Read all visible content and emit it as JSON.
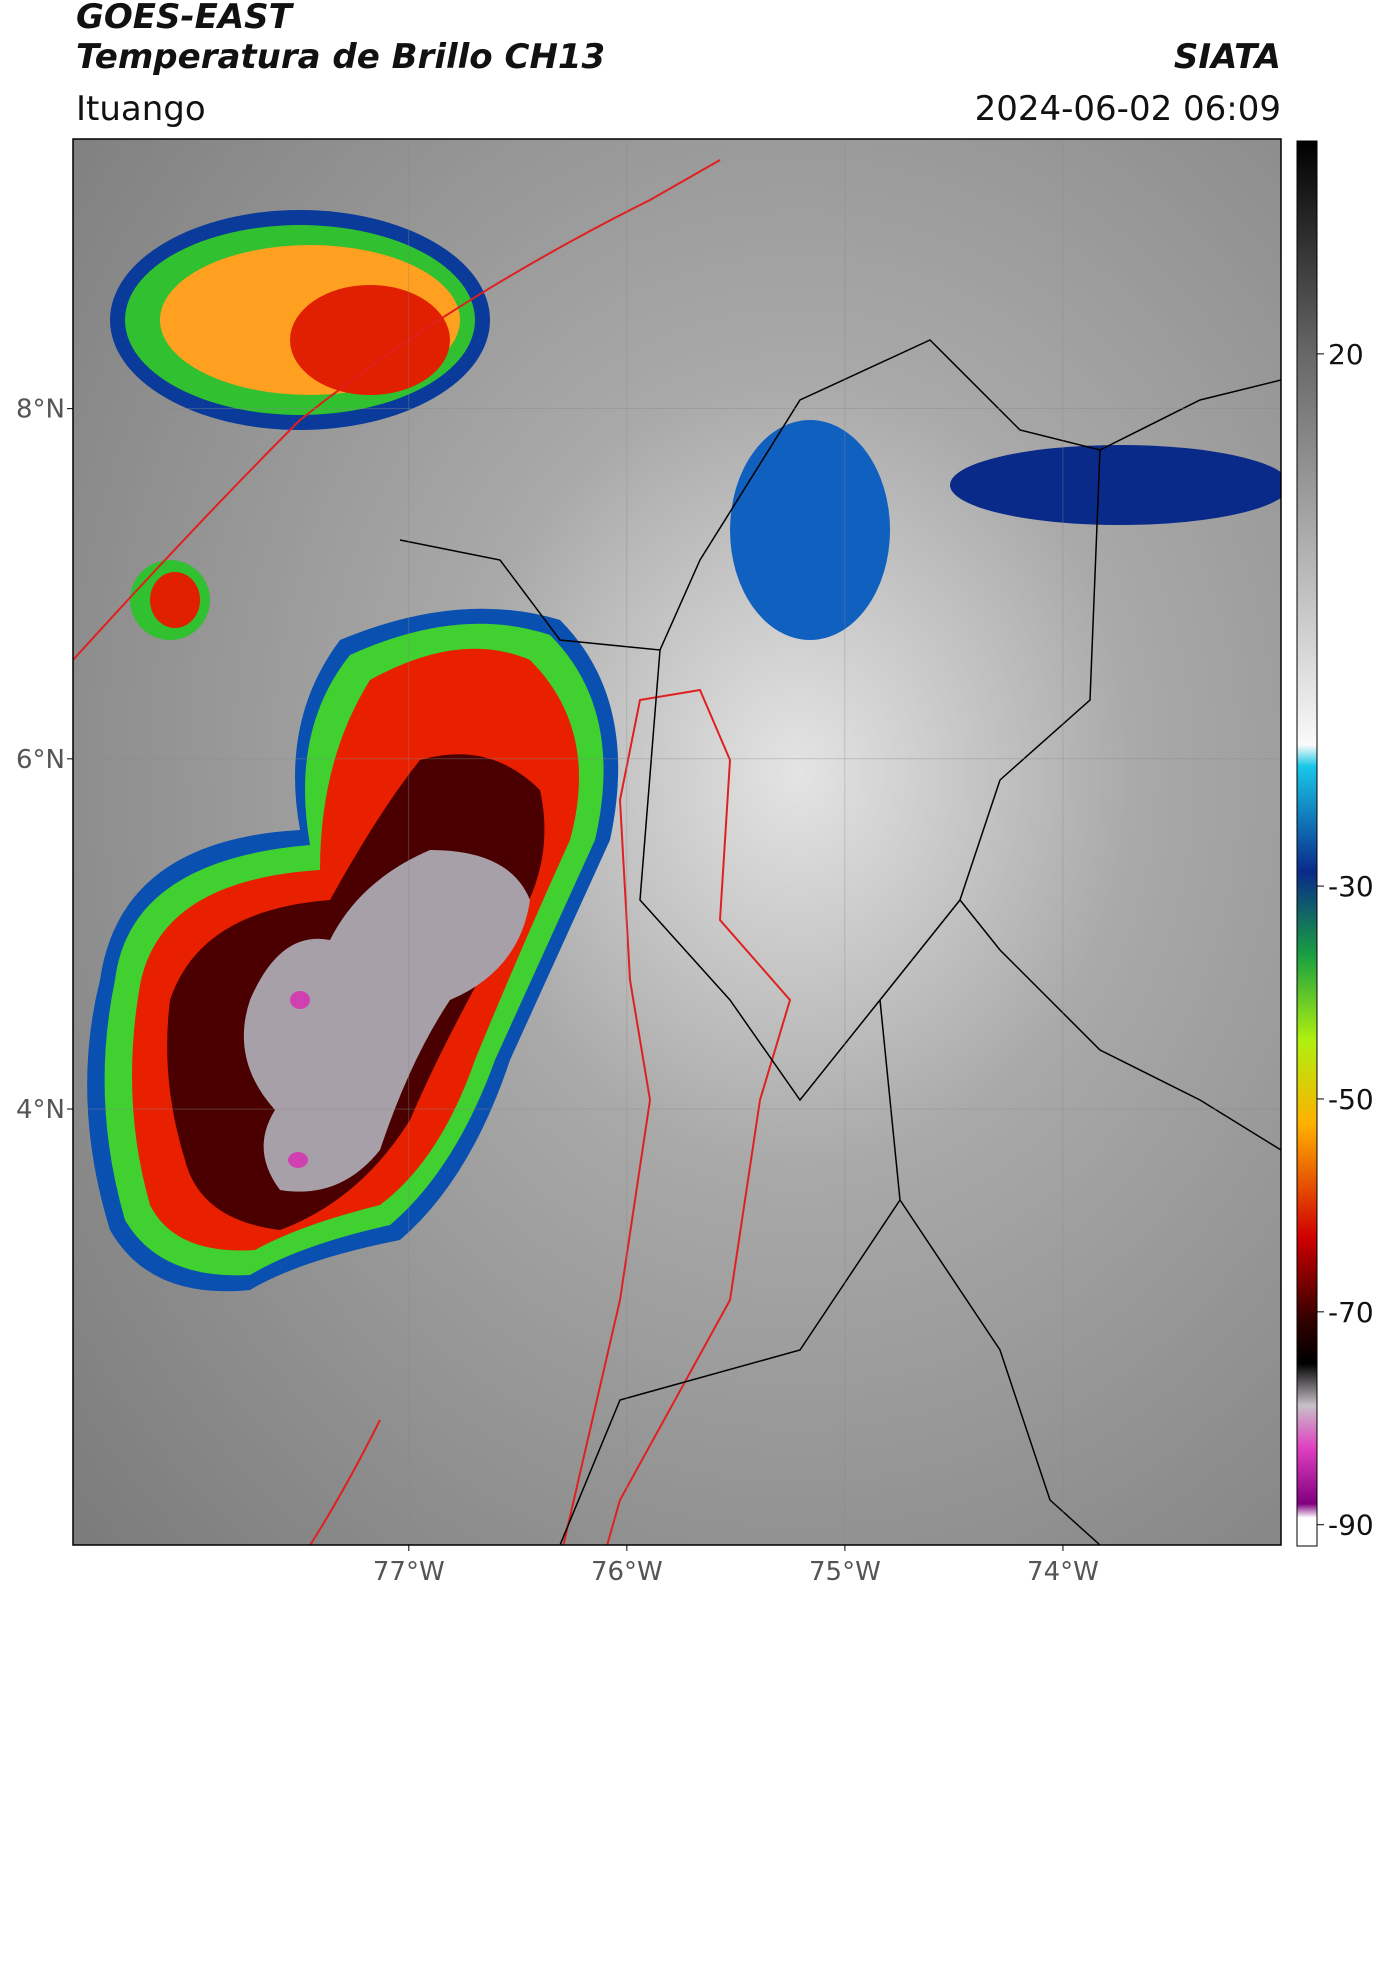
{
  "chart_data": {
    "type": "map",
    "title": "GOES-EAST",
    "subtitle": "Temperatura de Brillo CH13",
    "source": "SIATA",
    "location": "Ituango",
    "datetime": "2024-06-02 06:09",
    "xlim": [
      -78.54,
      -73.0
    ],
    "ylim": [
      1.51,
      9.54
    ],
    "xticks": [
      {
        "value": -77,
        "label": "77°W"
      },
      {
        "value": -76,
        "label": "76°W"
      },
      {
        "value": -75,
        "label": "75°W"
      },
      {
        "value": -74,
        "label": "74°W"
      }
    ],
    "yticks": [
      {
        "value": 8,
        "label": "8°N"
      },
      {
        "value": 6,
        "label": "6°N"
      },
      {
        "value": 4,
        "label": "4°N"
      }
    ],
    "colorbar": {
      "clim": [
        -92,
        40
      ],
      "ticks": [
        20,
        -30,
        -50,
        -70,
        -90
      ]
    },
    "grid": true
  }
}
